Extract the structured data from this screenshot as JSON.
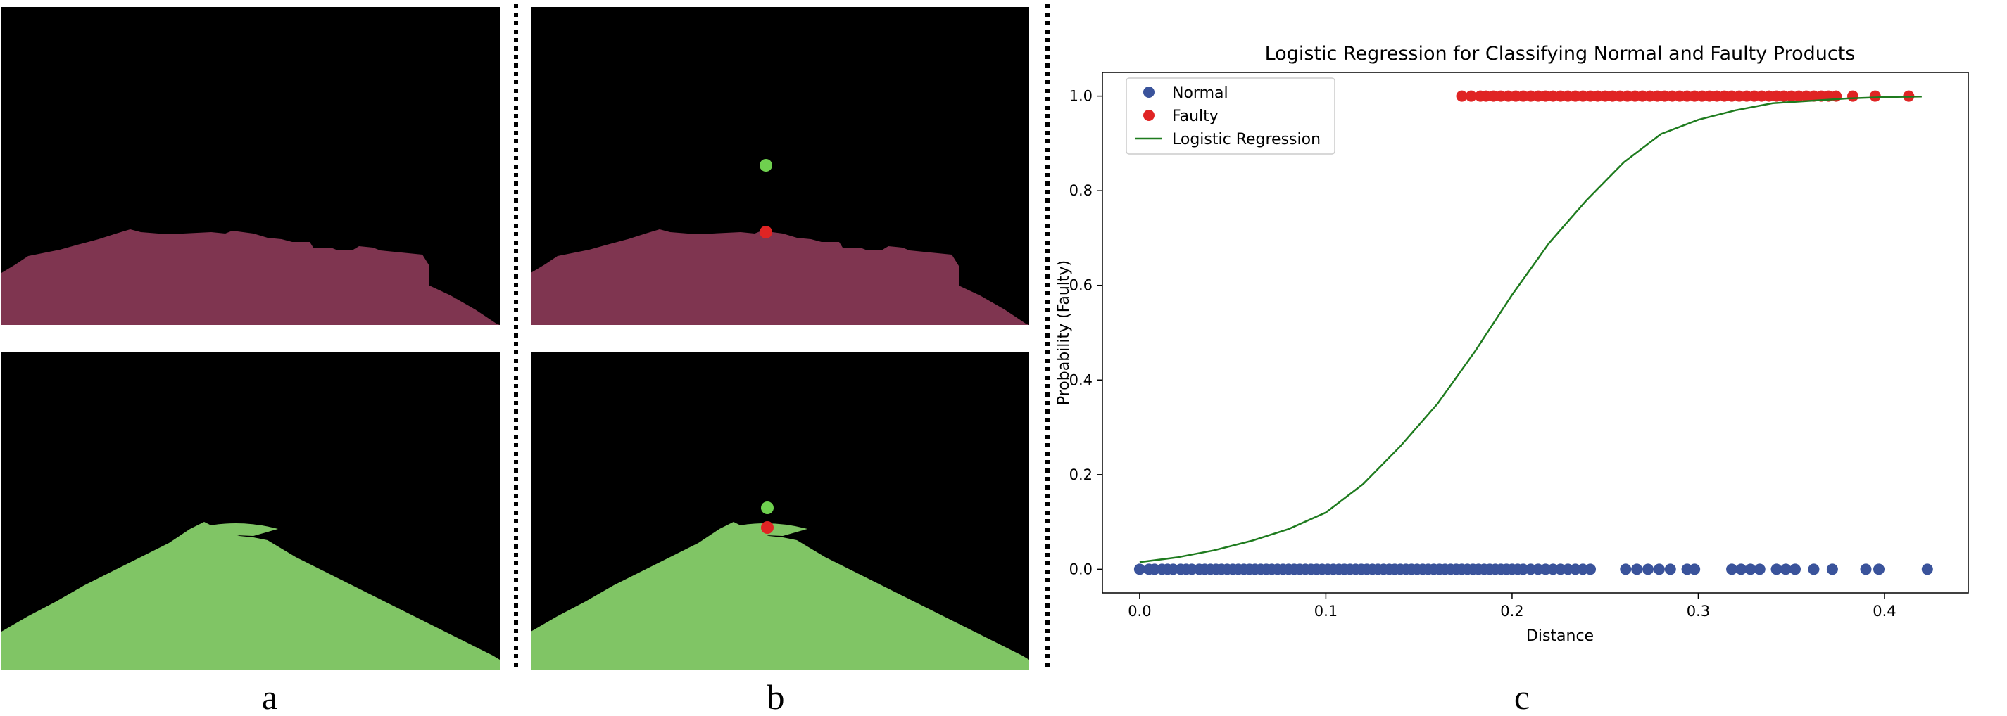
{
  "panels": {
    "a": {
      "label": "a"
    },
    "b": {
      "label": "b"
    },
    "c": {
      "label": "c"
    }
  },
  "colors": {
    "faulty_mask": "#7f3550",
    "normal_mask": "#80c565",
    "normal_points": "#3a539b",
    "faulty_points": "#e02424",
    "marker_green": "#6fd04f",
    "marker_red": "#e02424",
    "regression_line": "#1e7b1e"
  },
  "chart_data": {
    "type": "scatter",
    "title": "Logistic Regression for Classifying Normal and Faulty Products",
    "xlabel": "Distance",
    "ylabel": "Probability (Faulty)",
    "xlim": [
      -0.02,
      0.445
    ],
    "ylim": [
      -0.05,
      1.05
    ],
    "xticks": [
      0.0,
      0.1,
      0.2,
      0.3,
      0.4
    ],
    "xtick_labels": [
      "0.0",
      "0.1",
      "0.2",
      "0.3",
      "0.4"
    ],
    "yticks": [
      0.0,
      0.2,
      0.4,
      0.6,
      0.8,
      1.0
    ],
    "ytick_labels": [
      "0.0",
      "0.2",
      "0.4",
      "0.6",
      "0.8",
      "1.0"
    ],
    "grid": false,
    "legend_position": "top-left",
    "series": [
      {
        "name": "Normal",
        "kind": "scatter",
        "y_value": 0,
        "x": [
          0.0,
          0.005,
          0.008,
          0.012,
          0.015,
          0.018,
          0.022,
          0.025,
          0.028,
          0.032,
          0.035,
          0.038,
          0.041,
          0.044,
          0.047,
          0.05,
          0.053,
          0.056,
          0.059,
          0.062,
          0.065,
          0.068,
          0.071,
          0.074,
          0.077,
          0.08,
          0.083,
          0.086,
          0.089,
          0.092,
          0.095,
          0.098,
          0.101,
          0.104,
          0.107,
          0.11,
          0.113,
          0.116,
          0.119,
          0.122,
          0.125,
          0.128,
          0.131,
          0.134,
          0.137,
          0.14,
          0.143,
          0.146,
          0.149,
          0.152,
          0.155,
          0.158,
          0.161,
          0.164,
          0.167,
          0.17,
          0.173,
          0.176,
          0.179,
          0.182,
          0.185,
          0.188,
          0.191,
          0.194,
          0.197,
          0.2,
          0.203,
          0.206,
          0.21,
          0.214,
          0.218,
          0.222,
          0.226,
          0.23,
          0.234,
          0.238,
          0.242,
          0.261,
          0.267,
          0.273,
          0.279,
          0.285,
          0.294,
          0.298,
          0.318,
          0.323,
          0.328,
          0.333,
          0.342,
          0.347,
          0.352,
          0.362,
          0.372,
          0.39,
          0.397,
          0.423
        ]
      },
      {
        "name": "Faulty",
        "kind": "scatter",
        "y_value": 1,
        "x": [
          0.173,
          0.178,
          0.183,
          0.186,
          0.19,
          0.194,
          0.198,
          0.202,
          0.206,
          0.21,
          0.214,
          0.218,
          0.222,
          0.226,
          0.23,
          0.234,
          0.238,
          0.242,
          0.246,
          0.25,
          0.254,
          0.258,
          0.262,
          0.266,
          0.27,
          0.274,
          0.278,
          0.282,
          0.286,
          0.29,
          0.294,
          0.298,
          0.302,
          0.306,
          0.31,
          0.314,
          0.318,
          0.322,
          0.326,
          0.33,
          0.334,
          0.338,
          0.342,
          0.346,
          0.35,
          0.354,
          0.358,
          0.362,
          0.366,
          0.37,
          0.374,
          0.383,
          0.395,
          0.413
        ]
      },
      {
        "name": "Logistic Regression",
        "kind": "line",
        "x": [
          0.0,
          0.02,
          0.04,
          0.06,
          0.08,
          0.1,
          0.12,
          0.14,
          0.16,
          0.18,
          0.19,
          0.2,
          0.22,
          0.24,
          0.26,
          0.28,
          0.3,
          0.32,
          0.34,
          0.36,
          0.38,
          0.4,
          0.42
        ],
        "y": [
          0.015,
          0.025,
          0.04,
          0.06,
          0.085,
          0.12,
          0.18,
          0.26,
          0.35,
          0.46,
          0.52,
          0.58,
          0.69,
          0.78,
          0.86,
          0.92,
          0.95,
          0.97,
          0.985,
          0.99,
          0.995,
          0.998,
          0.999
        ]
      }
    ]
  }
}
